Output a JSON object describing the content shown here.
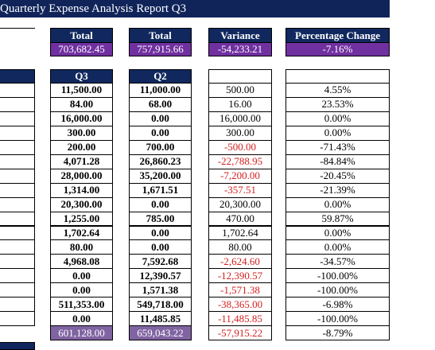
{
  "header": {
    "title": "Quarterly Expense Analysis Report Q3"
  },
  "summary": {
    "headers": [
      "Total",
      "Total",
      "Variance",
      "Percentage Change"
    ],
    "values": [
      "703,682.45",
      "757,915.66",
      "-54,233.21",
      "-7.16%"
    ]
  },
  "table": {
    "headers": [
      "Q3",
      "Q2"
    ],
    "rows": [
      [
        "11,500.00",
        "11,000.00",
        "500.00",
        "4.55%"
      ],
      [
        "84.00",
        "68.00",
        "16.00",
        "23.53%"
      ],
      [
        "16,000.00",
        "0.00",
        "16,000.00",
        "0.00%"
      ],
      [
        "300.00",
        "0.00",
        "300.00",
        "0.00%"
      ],
      [
        "200.00",
        "700.00",
        "-500.00",
        "-71.43%"
      ],
      [
        "4,071.28",
        "26,860.23",
        "-22,788.95",
        "-84.84%"
      ],
      [
        "28,000.00",
        "35,200.00",
        "-7,200.00",
        "-20.45%"
      ],
      [
        "1,314.00",
        "1,671.51",
        "-357.51",
        "-21.39%"
      ],
      [
        "20,300.00",
        "0.00",
        "20,300.00",
        "0.00%"
      ],
      [
        "1,255.00",
        "785.00",
        "470.00",
        "59.87%"
      ],
      [
        "1,702.64",
        "0.00",
        "1,702.64",
        "0.00%"
      ],
      [
        "80.00",
        "0.00",
        "80.00",
        "0.00%"
      ],
      [
        "4,968.08",
        "7,592.68",
        "-2,624.60",
        "-34.57%"
      ],
      [
        "0.00",
        "12,390.57",
        "-12,390.57",
        "-100.00%"
      ],
      [
        "0.00",
        "1,571.38",
        "-1,571.38",
        "-100.00%"
      ],
      [
        "511,353.00",
        "549,718.00",
        "-38,365.00",
        "-6.98%"
      ],
      [
        "0.00",
        "11,485.85",
        "-11,485.85",
        "-100.00%"
      ]
    ],
    "total": [
      "601,128.00",
      "659,043.22",
      "-57,915.22",
      "-8.79%"
    ]
  }
}
